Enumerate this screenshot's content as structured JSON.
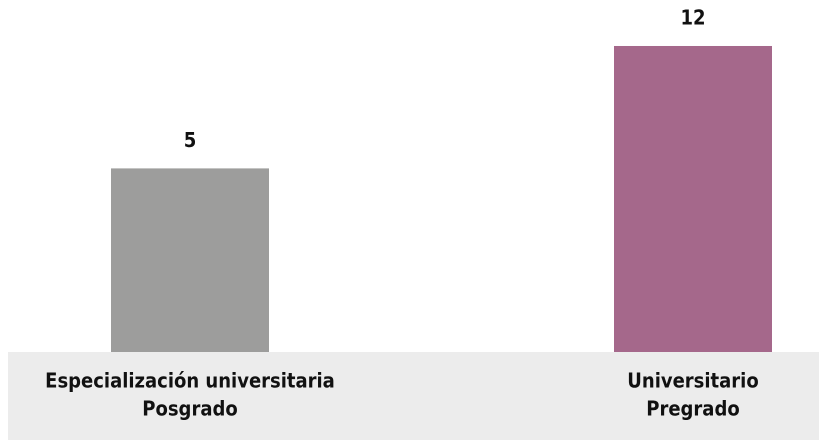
{
  "chart_data": {
    "type": "bar",
    "categories": [
      [
        "Especialización universitaria",
        "Posgrado"
      ],
      [
        "Universitario",
        "Pregrado"
      ]
    ],
    "values": [
      5,
      12
    ],
    "colors": [
      "#9d9d9c",
      "#a5688b"
    ],
    "ylim": [
      -5.5,
      13
    ]
  }
}
